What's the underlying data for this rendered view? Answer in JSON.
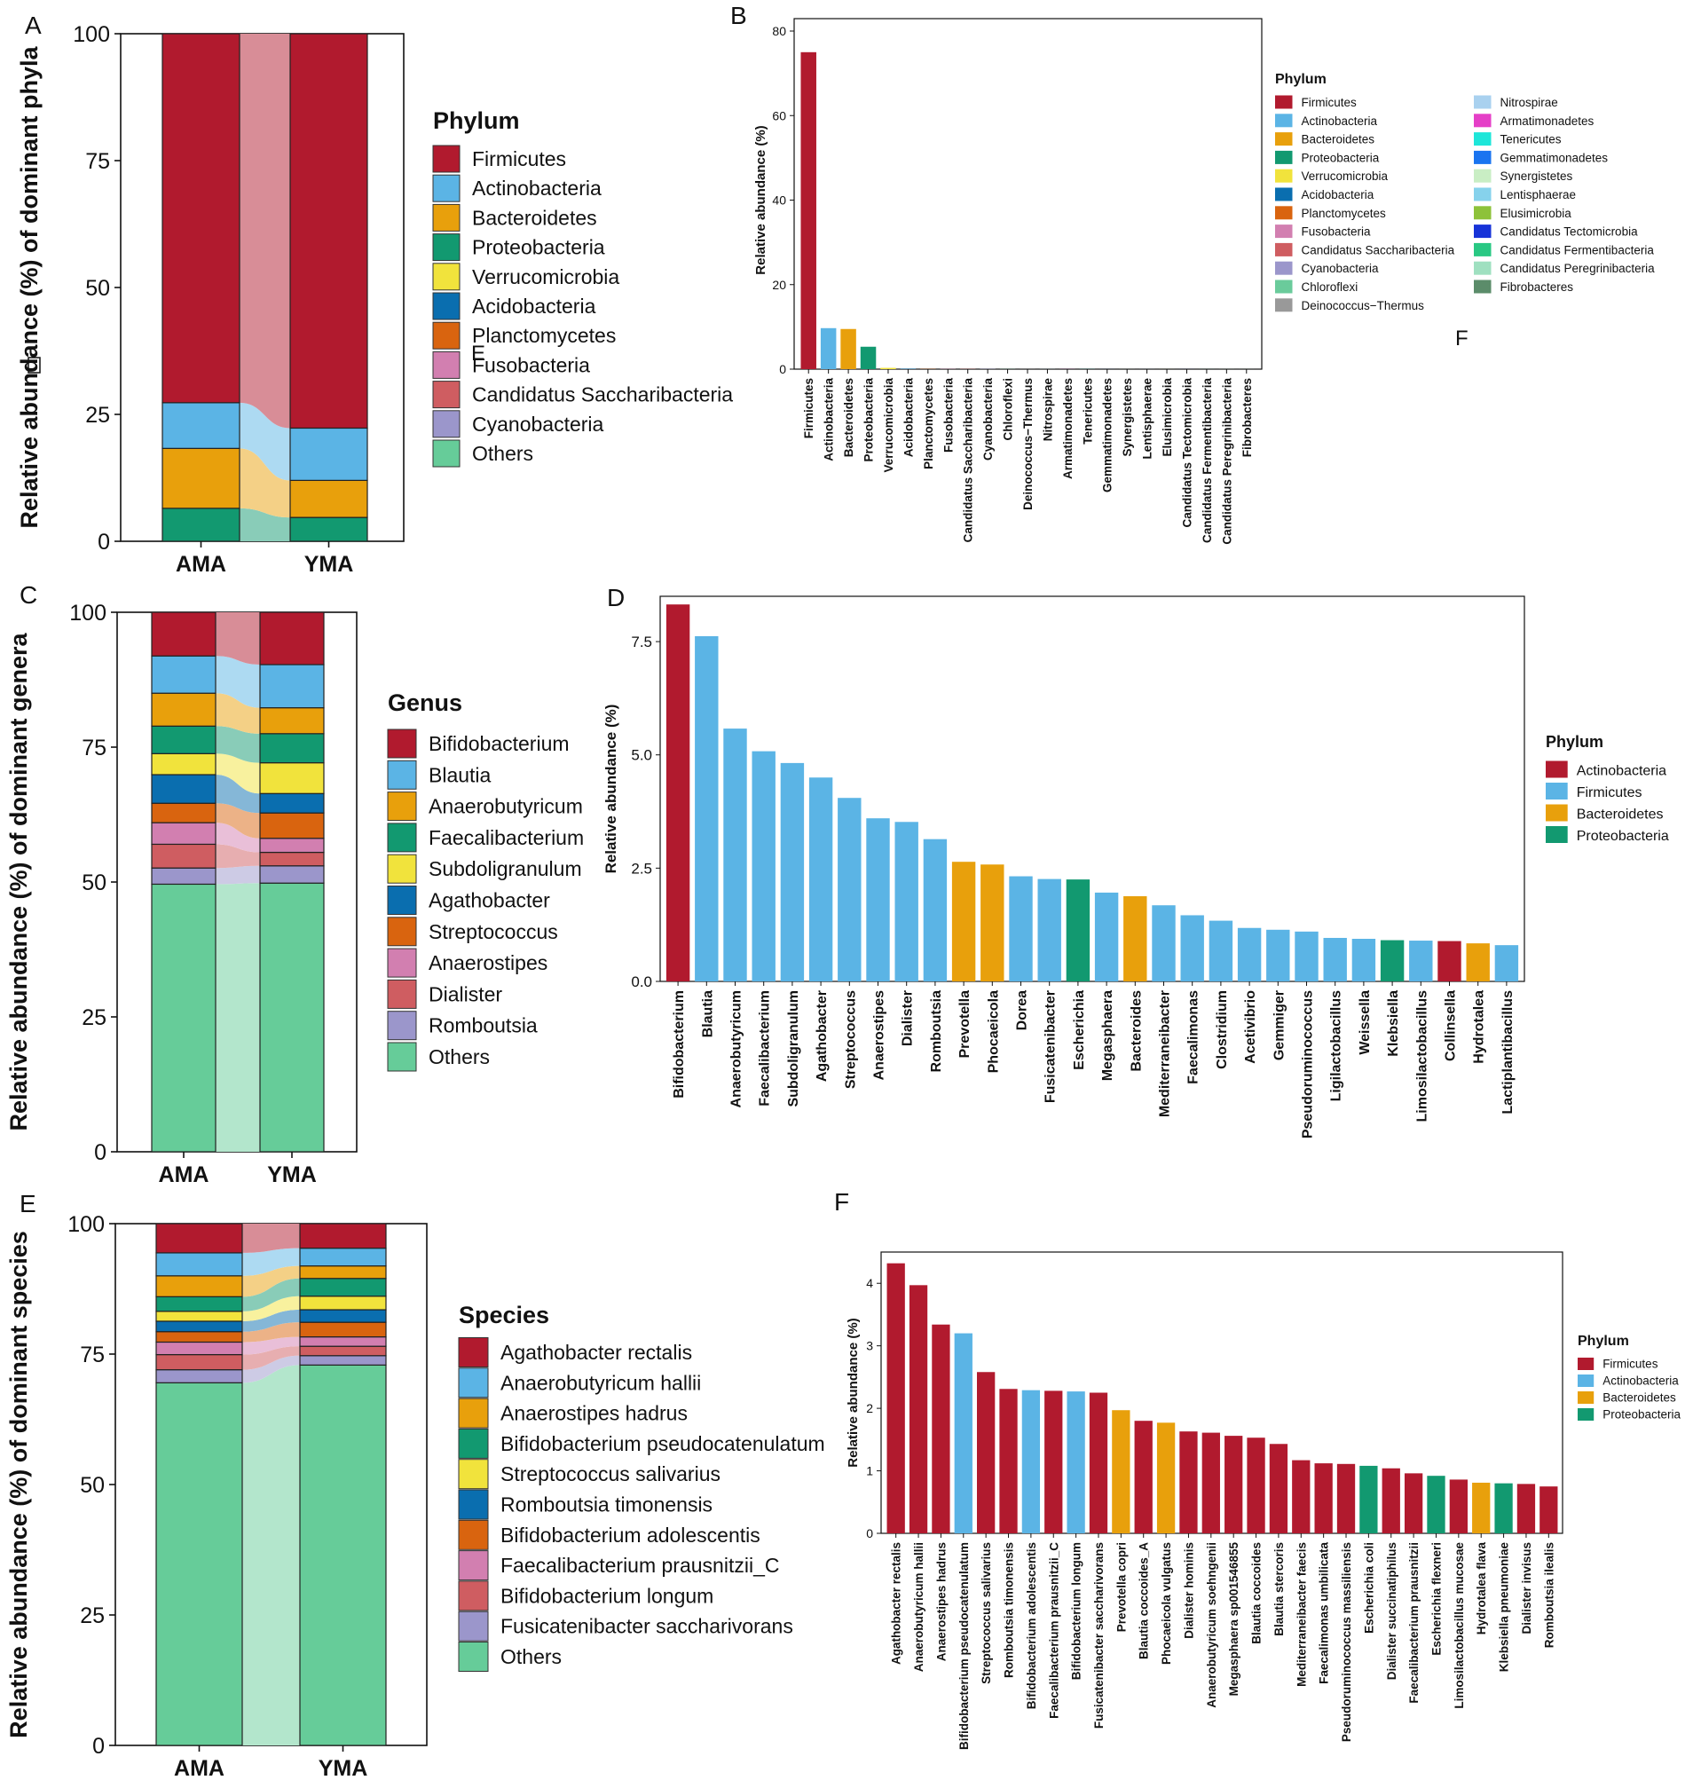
{
  "colors": {
    "firmicutes": "#b11a2e",
    "actinobacteria": "#5bb4e5",
    "bacteroidetes": "#e8a00c",
    "proteobacteria": "#129970",
    "verrucomicrobia": "#f1e33c",
    "acidobacteria": "#0a6eaf",
    "planctomycetes": "#d9640f",
    "fusobacteria": "#d27fb0",
    "saccharibacteria": "#cf5d61",
    "cyanobacteria": "#9b96cb",
    "chloroflexi": "#6acb9b",
    "deinococcus": "#999999",
    "nitrospirae": "#a9d1ef",
    "armatimonadetes": "#e53fc7",
    "tenericutes": "#1ee6d9",
    "gemmatimonadetes": "#1a74f0",
    "synergistetes": "#c9eec4",
    "lentisphaerae": "#86d2ec",
    "elusimicrobia": "#8dc23a",
    "tectomicrobia": "#1733d8",
    "fermentibacteria": "#29c883",
    "peregrinibacteria": "#9fe0c0",
    "fibrobacteres": "#5b8c6a",
    "others": "#66cc99"
  },
  "stray_labels": {
    "e_letter": "E",
    "f_letter": "F",
    "e_box": "E"
  },
  "chart_data": [
    {
      "id": "A",
      "type": "stacked_bar",
      "panel_label": "A",
      "ylabel": "Relative abundance (%) of dominant phyla",
      "ylim": [
        0,
        100
      ],
      "yticks": [
        "0",
        "25",
        "50",
        "75",
        "100"
      ],
      "categories": [
        "AMA",
        "YMA"
      ],
      "legend_title": "Phylum",
      "series": [
        {
          "name": "Proteobacteria",
          "color_key": "proteobacteria",
          "values": [
            6.5,
            4.7
          ]
        },
        {
          "name": "Bacteroidetes",
          "color_key": "bacteroidetes",
          "values": [
            11.8,
            7.3
          ]
        },
        {
          "name": "Actinobacteria",
          "color_key": "actinobacteria",
          "values": [
            9.0,
            10.3
          ]
        },
        {
          "name": "Firmicutes",
          "color_key": "firmicutes",
          "values": [
            72.7,
            77.7
          ]
        }
      ],
      "legend": [
        {
          "name": "Firmicutes",
          "color_key": "firmicutes"
        },
        {
          "name": "Actinobacteria",
          "color_key": "actinobacteria"
        },
        {
          "name": "Bacteroidetes",
          "color_key": "bacteroidetes"
        },
        {
          "name": "Proteobacteria",
          "color_key": "proteobacteria"
        },
        {
          "name": "Verrucomicrobia",
          "color_key": "verrucomicrobia"
        },
        {
          "name": "Acidobacteria",
          "color_key": "acidobacteria"
        },
        {
          "name": "Planctomycetes",
          "color_key": "planctomycetes"
        },
        {
          "name": "Fusobacteria",
          "color_key": "fusobacteria"
        },
        {
          "name": "Candidatus Saccharibacteria",
          "color_key": "saccharibacteria"
        },
        {
          "name": "Cyanobacteria",
          "color_key": "cyanobacteria"
        },
        {
          "name": "Others",
          "color_key": "others"
        }
      ]
    },
    {
      "id": "B",
      "type": "bar",
      "panel_label": "B",
      "ylabel": "Relative abundance (%)",
      "ylim": [
        0,
        80
      ],
      "yticks": [
        "0",
        "20",
        "40",
        "60",
        "80"
      ],
      "legend_title": "Phylum",
      "categories": [
        "Firmicutes",
        "Actinobacteria",
        "Bacteroidetes",
        "Proteobacteria",
        "Verrucomicrobia",
        "Acidobacteria",
        "Planctomycetes",
        "Fusobacteria",
        "Candidatus Saccharibacteria",
        "Cyanobacteria",
        "Chloroflexi",
        "Deinococcus−Thermus",
        "Nitrospirae",
        "Armatimonadetes",
        "Tenericutes",
        "Gemmatimonadetes",
        "Synergistetes",
        "Lentisphaerae",
        "Elusimicrobia",
        "Candidatus Tectomicrobia",
        "Candidatus Fermentibacteria",
        "Candidatus Peregrinibacteria",
        "Fibrobacteres"
      ],
      "values": [
        75.0,
        9.7,
        9.5,
        5.3,
        0.3,
        0.1,
        0.05,
        0.05,
        0.05,
        0.05,
        0.03,
        0.02,
        0.02,
        0.02,
        0.02,
        0.01,
        0.01,
        0.01,
        0.01,
        0.01,
        0.01,
        0.01,
        0.01
      ],
      "bar_color_keys": [
        "firmicutes",
        "actinobacteria",
        "bacteroidetes",
        "proteobacteria",
        "verrucomicrobia",
        "acidobacteria",
        "planctomycetes",
        "fusobacteria",
        "saccharibacteria",
        "cyanobacteria",
        "chloroflexi",
        "deinococcus",
        "nitrospirae",
        "armatimonadetes",
        "tenericutes",
        "gemmatimonadetes",
        "synergistetes",
        "lentisphaerae",
        "elusimicrobia",
        "tectomicrobia",
        "fermentibacteria",
        "peregrinibacteria",
        "fibrobacteres"
      ],
      "legend": [
        {
          "name": "Firmicutes",
          "color_key": "firmicutes"
        },
        {
          "name": "Actinobacteria",
          "color_key": "actinobacteria"
        },
        {
          "name": "Bacteroidetes",
          "color_key": "bacteroidetes"
        },
        {
          "name": "Proteobacteria",
          "color_key": "proteobacteria"
        },
        {
          "name": "Verrucomicrobia",
          "color_key": "verrucomicrobia"
        },
        {
          "name": "Acidobacteria",
          "color_key": "acidobacteria"
        },
        {
          "name": "Planctomycetes",
          "color_key": "planctomycetes"
        },
        {
          "name": "Fusobacteria",
          "color_key": "fusobacteria"
        },
        {
          "name": "Candidatus Saccharibacteria",
          "color_key": "saccharibacteria"
        },
        {
          "name": "Cyanobacteria",
          "color_key": "cyanobacteria"
        },
        {
          "name": "Chloroflexi",
          "color_key": "chloroflexi"
        },
        {
          "name": "Deinococcus−Thermus",
          "color_key": "deinococcus"
        },
        {
          "name": "Nitrospirae",
          "color_key": "nitrospirae"
        },
        {
          "name": "Armatimonadetes",
          "color_key": "armatimonadetes"
        },
        {
          "name": "Tenericutes",
          "color_key": "tenericutes"
        },
        {
          "name": "Gemmatimonadetes",
          "color_key": "gemmatimonadetes"
        },
        {
          "name": "Synergistetes",
          "color_key": "synergistetes"
        },
        {
          "name": "Lentisphaerae",
          "color_key": "lentisphaerae"
        },
        {
          "name": "Elusimicrobia",
          "color_key": "elusimicrobia"
        },
        {
          "name": "Candidatus Tectomicrobia",
          "color_key": "tectomicrobia"
        },
        {
          "name": "Candidatus Fermentibacteria",
          "color_key": "fermentibacteria"
        },
        {
          "name": "Candidatus Peregrinibacteria",
          "color_key": "peregrinibacteria"
        },
        {
          "name": "Fibrobacteres",
          "color_key": "fibrobacteres"
        }
      ]
    },
    {
      "id": "C",
      "type": "stacked_bar",
      "panel_label": "C",
      "ylabel": "Relative abundance (%) of dominant genera",
      "ylim": [
        0,
        100
      ],
      "yticks": [
        "0",
        "25",
        "50",
        "75",
        "100"
      ],
      "categories": [
        "AMA",
        "YMA"
      ],
      "legend_title": "Genus",
      "series": [
        {
          "name": "Others",
          "color_key": "others",
          "values": [
            49.6,
            49.8
          ]
        },
        {
          "name": "Romboutsia",
          "color_key": "cyanobacteria",
          "values": [
            3.0,
            3.2
          ]
        },
        {
          "name": "Dialister",
          "color_key": "saccharibacteria",
          "values": [
            4.4,
            2.5
          ]
        },
        {
          "name": "Anaerostipes",
          "color_key": "fusobacteria",
          "values": [
            4.0,
            2.6
          ]
        },
        {
          "name": "Streptococcus",
          "color_key": "planctomycetes",
          "values": [
            3.6,
            4.7
          ]
        },
        {
          "name": "Agathobacter",
          "color_key": "acidobacteria",
          "values": [
            5.3,
            3.6
          ]
        },
        {
          "name": "Subdoligranulum",
          "color_key": "verrucomicrobia",
          "values": [
            3.9,
            5.7
          ]
        },
        {
          "name": "Faecalibacterium",
          "color_key": "proteobacteria",
          "values": [
            5.1,
            5.4
          ]
        },
        {
          "name": "Anaerobutyricum",
          "color_key": "bacteroidetes",
          "values": [
            6.1,
            4.8
          ]
        },
        {
          "name": "Blautia",
          "color_key": "actinobacteria",
          "values": [
            6.9,
            8.0
          ]
        },
        {
          "name": "Bifidobacterium",
          "color_key": "firmicutes",
          "values": [
            8.1,
            9.7
          ]
        }
      ],
      "legend": [
        {
          "name": "Bifidobacterium",
          "color_key": "firmicutes"
        },
        {
          "name": "Blautia",
          "color_key": "actinobacteria"
        },
        {
          "name": "Anaerobutyricum",
          "color_key": "bacteroidetes"
        },
        {
          "name": "Faecalibacterium",
          "color_key": "proteobacteria"
        },
        {
          "name": "Subdoligranulum",
          "color_key": "verrucomicrobia"
        },
        {
          "name": "Agathobacter",
          "color_key": "acidobacteria"
        },
        {
          "name": "Streptococcus",
          "color_key": "planctomycetes"
        },
        {
          "name": "Anaerostipes",
          "color_key": "fusobacteria"
        },
        {
          "name": "Dialister",
          "color_key": "saccharibacteria"
        },
        {
          "name": "Romboutsia",
          "color_key": "cyanobacteria"
        },
        {
          "name": "Others",
          "color_key": "others"
        }
      ]
    },
    {
      "id": "D",
      "type": "bar",
      "panel_label": "D",
      "ylabel": "Relative abundance (%)",
      "ylim": [
        0,
        8.5
      ],
      "ytick_values": [
        0,
        2.5,
        5,
        7.5
      ],
      "yticks": [
        "0.0",
        "2.5",
        "5.0",
        "7.5"
      ],
      "legend_title": "Phylum",
      "categories": [
        "Bifidobacterium",
        "Blautia",
        "Anaerobutyricum",
        "Faecalibacterium",
        "Subdoligranulum",
        "Agathobacter",
        "Streptococcus",
        "Anaerostipes",
        "Dialister",
        "Romboutsia",
        "Prevotella",
        "Phocaeicola",
        "Dorea",
        "Fusicatenibacter",
        "Escherichia",
        "Megasphaera",
        "Bacteroides",
        "Mediterraneibacter",
        "Faecalimonas",
        "Clostridium",
        "Acetivibrio",
        "Gemmiger",
        "Pseudoruminococcus",
        "Ligilactobacillus",
        "Weissella",
        "Klebsiella",
        "Limosilactobacillus",
        "Collinsella",
        "Hydrotalea",
        "Lactiplantibacillus"
      ],
      "values": [
        8.32,
        7.62,
        5.58,
        5.08,
        4.82,
        4.5,
        4.05,
        3.6,
        3.52,
        3.14,
        2.64,
        2.58,
        2.32,
        2.26,
        2.25,
        1.96,
        1.88,
        1.68,
        1.46,
        1.34,
        1.18,
        1.14,
        1.1,
        0.96,
        0.94,
        0.91,
        0.9,
        0.89,
        0.84,
        0.8
      ],
      "bar_color_keys": [
        "firmicutes",
        "actinobacteria",
        "actinobacteria",
        "actinobacteria",
        "actinobacteria",
        "actinobacteria",
        "actinobacteria",
        "actinobacteria",
        "actinobacteria",
        "actinobacteria",
        "bacteroidetes",
        "bacteroidetes",
        "actinobacteria",
        "actinobacteria",
        "proteobacteria",
        "actinobacteria",
        "bacteroidetes",
        "actinobacteria",
        "actinobacteria",
        "actinobacteria",
        "actinobacteria",
        "actinobacteria",
        "actinobacteria",
        "actinobacteria",
        "actinobacteria",
        "proteobacteria",
        "actinobacteria",
        "firmicutes",
        "bacteroidetes",
        "actinobacteria"
      ],
      "legend": [
        {
          "name": "Actinobacteria",
          "color_key": "firmicutes"
        },
        {
          "name": "Firmicutes",
          "color_key": "actinobacteria"
        },
        {
          "name": "Bacteroidetes",
          "color_key": "bacteroidetes"
        },
        {
          "name": "Proteobacteria",
          "color_key": "proteobacteria"
        }
      ]
    },
    {
      "id": "E",
      "type": "stacked_bar",
      "panel_label": "E",
      "ylabel": "Relative abundance (%) of dominant species",
      "ylim": [
        0,
        100
      ],
      "yticks": [
        "0",
        "25",
        "50",
        "75",
        "100"
      ],
      "categories": [
        "AMA",
        "YMA"
      ],
      "legend_title": "Species",
      "series": [
        {
          "name": "Others",
          "color_key": "others",
          "values": [
            69.5,
            72.9
          ]
        },
        {
          "name": "Fusicatenibacter saccharivorans",
          "color_key": "cyanobacteria",
          "values": [
            2.5,
            1.8
          ]
        },
        {
          "name": "Bifidobacterium longum",
          "color_key": "saccharibacteria",
          "values": [
            2.9,
            1.8
          ]
        },
        {
          "name": "Faecalibacterium prausnitzii_C",
          "color_key": "fusobacteria",
          "values": [
            2.4,
            1.8
          ]
        },
        {
          "name": "Bifidobacterium adolescentis",
          "color_key": "planctomycetes",
          "values": [
            2.0,
            2.8
          ]
        },
        {
          "name": "Romboutsia timonensis",
          "color_key": "acidobacteria",
          "values": [
            2.0,
            2.4
          ]
        },
        {
          "name": "Streptococcus salivarius",
          "color_key": "verrucomicrobia",
          "values": [
            1.9,
            2.6
          ]
        },
        {
          "name": "Bifidobacterium pseudocatenulatum",
          "color_key": "proteobacteria",
          "values": [
            2.8,
            3.4
          ]
        },
        {
          "name": "Anaerostipes hadrus",
          "color_key": "bacteroidetes",
          "values": [
            4.0,
            2.4
          ]
        },
        {
          "name": "Anaerobutyricum hallii",
          "color_key": "actinobacteria",
          "values": [
            4.4,
            3.4
          ]
        },
        {
          "name": "Agathobacter rectalis",
          "color_key": "firmicutes",
          "values": [
            5.6,
            4.7
          ]
        }
      ],
      "legend": [
        {
          "name": "Agathobacter rectalis",
          "color_key": "firmicutes"
        },
        {
          "name": "Anaerobutyricum hallii",
          "color_key": "actinobacteria"
        },
        {
          "name": "Anaerostipes hadrus",
          "color_key": "bacteroidetes"
        },
        {
          "name": "Bifidobacterium pseudocatenulatum",
          "color_key": "proteobacteria"
        },
        {
          "name": "Streptococcus salivarius",
          "color_key": "verrucomicrobia"
        },
        {
          "name": "Romboutsia timonensis",
          "color_key": "acidobacteria"
        },
        {
          "name": "Bifidobacterium adolescentis",
          "color_key": "planctomycetes"
        },
        {
          "name": "Faecalibacterium prausnitzii_C",
          "color_key": "fusobacteria"
        },
        {
          "name": "Bifidobacterium longum",
          "color_key": "saccharibacteria"
        },
        {
          "name": "Fusicatenibacter saccharivorans",
          "color_key": "cyanobacteria"
        },
        {
          "name": "Others",
          "color_key": "others"
        }
      ]
    },
    {
      "id": "F",
      "type": "bar",
      "panel_label": "F",
      "ylabel": "Relative abundance (%)",
      "ylim": [
        0,
        4.5
      ],
      "ytick_values": [
        0,
        1,
        2,
        3,
        4
      ],
      "yticks": [
        "0",
        "1",
        "2",
        "3",
        "4"
      ],
      "legend_title": "Phylum",
      "categories": [
        "Agathobacter rectalis",
        "Anaerobutyricum hallii",
        "Anaerostipes hadrus",
        "Bifidobacterium pseudocatenulatum",
        "Streptococcus salivarius",
        "Romboutsia timonensis",
        "Bifidobacterium adolescentis",
        "Faecalibacterium prausnitzii_C",
        "Bifidobacterium longum",
        "Fusicatenibacter saccharivorans",
        "Prevotella copri",
        "Blautia coccoides_A",
        "Phocaeicola vulgatus",
        "Dialister hominis",
        "Anaerobutyricum soehngenii",
        "Megasphaera sp001546855",
        "Blautia coccoides",
        "Blautia stercoris",
        "Mediterraneibacter faecis",
        "Faecalimonas umbilicata",
        "Pseudoruminococcus massiliensis",
        "Escherichia coli",
        "Dialister succinatiphilus",
        "Faecalibacterium prausnitzii",
        "Escherichia flexneri",
        "Limosilactobacillus mucosae",
        "Hydrotalea flava",
        "Klebsiella pneumoniae",
        "Dialister invisus",
        "Romboutsia ilealis"
      ],
      "values": [
        4.32,
        3.97,
        3.34,
        3.2,
        2.58,
        2.31,
        2.29,
        2.28,
        2.27,
        2.25,
        1.97,
        1.8,
        1.77,
        1.63,
        1.61,
        1.56,
        1.53,
        1.43,
        1.17,
        1.12,
        1.11,
        1.08,
        1.04,
        0.96,
        0.92,
        0.86,
        0.81,
        0.8,
        0.79,
        0.75
      ],
      "bar_color_keys": [
        "firmicutes",
        "firmicutes",
        "firmicutes",
        "actinobacteria",
        "firmicutes",
        "firmicutes",
        "actinobacteria",
        "firmicutes",
        "actinobacteria",
        "firmicutes",
        "bacteroidetes",
        "firmicutes",
        "bacteroidetes",
        "firmicutes",
        "firmicutes",
        "firmicutes",
        "firmicutes",
        "firmicutes",
        "firmicutes",
        "firmicutes",
        "firmicutes",
        "proteobacteria",
        "firmicutes",
        "firmicutes",
        "proteobacteria",
        "firmicutes",
        "bacteroidetes",
        "proteobacteria",
        "firmicutes",
        "firmicutes"
      ],
      "legend": [
        {
          "name": "Firmicutes",
          "color_key": "firmicutes"
        },
        {
          "name": "Actinobacteria",
          "color_key": "actinobacteria"
        },
        {
          "name": "Bacteroidetes",
          "color_key": "bacteroidetes"
        },
        {
          "name": "Proteobacteria",
          "color_key": "proteobacteria"
        }
      ]
    }
  ]
}
